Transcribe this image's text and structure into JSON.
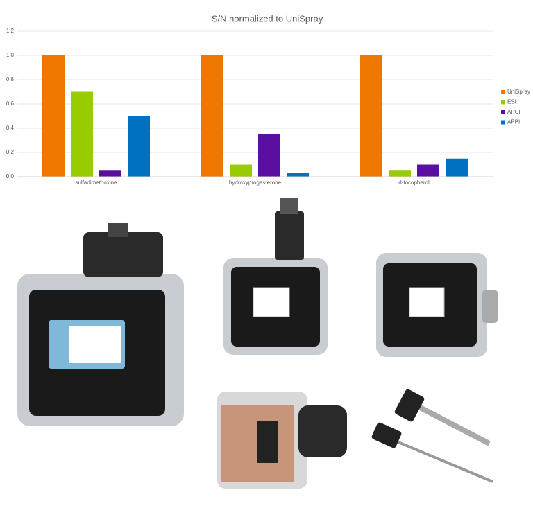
{
  "chart_data": {
    "type": "bar",
    "title": "S/N normalized to UniSpray",
    "categories": [
      "sulfadimethoxine",
      "hydroxyprogesterone",
      "d-tocopherol"
    ],
    "series": [
      {
        "name": "UniSpray",
        "color": "#f07800",
        "values": [
          1.0,
          1.0,
          1.0
        ]
      },
      {
        "name": "ESI",
        "color": "#99cc00",
        "values": [
          0.7,
          0.1,
          0.05
        ]
      },
      {
        "name": "APCI",
        "color": "#5a0fa0",
        "values": [
          0.05,
          0.35,
          0.1
        ]
      },
      {
        "name": "APPI",
        "color": "#0070c0",
        "values": [
          0.5,
          0.03,
          0.15
        ]
      }
    ],
    "ylim": [
      0,
      1.2
    ],
    "yticks": [
      {
        "value": 0,
        "label": "0.0"
      },
      0.2,
      0.4,
      0.6,
      0.8,
      {
        "value": 1,
        "label": "1.0"
      },
      1.2
    ],
    "grid": true,
    "legend": "right"
  }
}
